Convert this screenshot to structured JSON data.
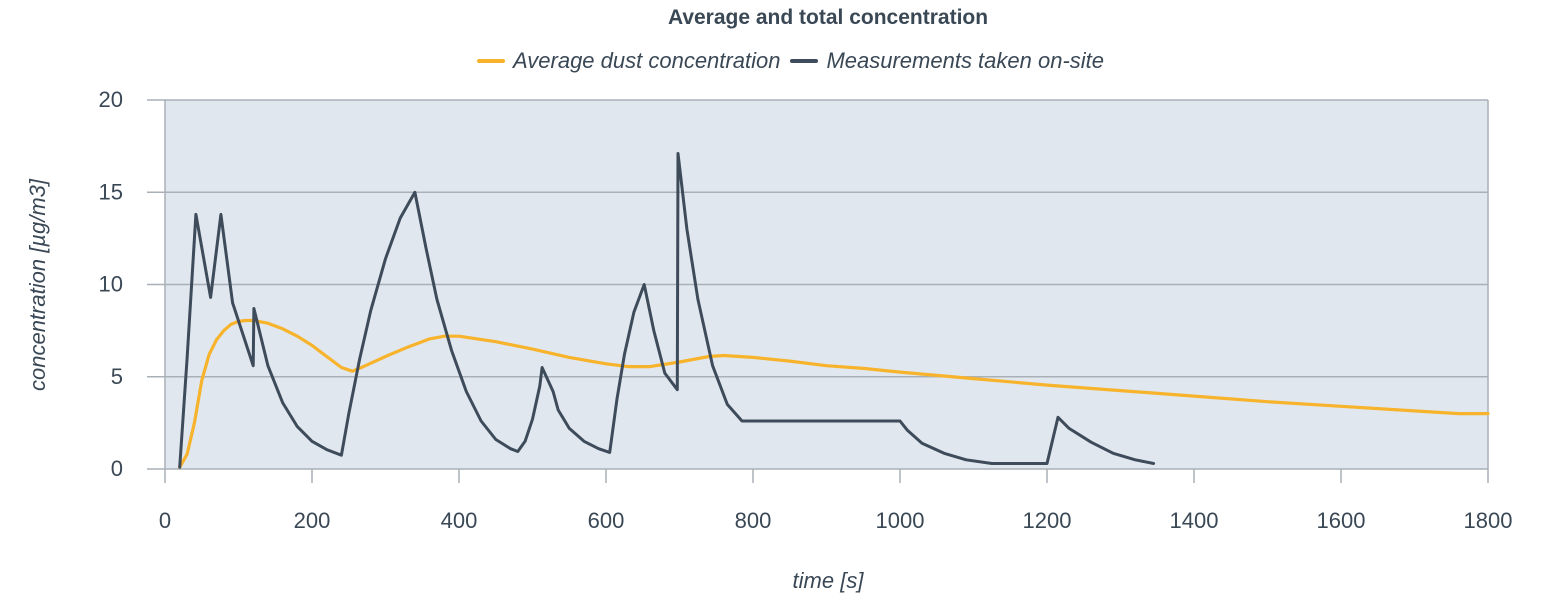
{
  "chart_data": {
    "type": "line",
    "title": "Average and total concentration",
    "xlabel": "time [s]",
    "ylabel": "concentration [µg/m3]",
    "xlim": [
      0,
      1800
    ],
    "ylim": [
      0,
      20
    ],
    "xticks": [
      0,
      200,
      400,
      600,
      800,
      1000,
      1200,
      1400,
      1600,
      1800
    ],
    "yticks": [
      0,
      5,
      10,
      15,
      20
    ],
    "grid": "horizontal",
    "legend_position": "top",
    "plot_background": "#e1e7ee",
    "series": [
      {
        "name": "Average dust concentration",
        "color": "#f7b32b",
        "points": [
          [
            20,
            0.1
          ],
          [
            30,
            0.8
          ],
          [
            40,
            2.5
          ],
          [
            50,
            4.8
          ],
          [
            60,
            6.2
          ],
          [
            70,
            7.0
          ],
          [
            80,
            7.5
          ],
          [
            90,
            7.85
          ],
          [
            100,
            8.0
          ],
          [
            110,
            8.05
          ],
          [
            120,
            8.05
          ],
          [
            140,
            7.9
          ],
          [
            160,
            7.6
          ],
          [
            180,
            7.2
          ],
          [
            200,
            6.7
          ],
          [
            220,
            6.1
          ],
          [
            240,
            5.5
          ],
          [
            255,
            5.3
          ],
          [
            270,
            5.55
          ],
          [
            300,
            6.1
          ],
          [
            330,
            6.6
          ],
          [
            360,
            7.05
          ],
          [
            380,
            7.2
          ],
          [
            400,
            7.2
          ],
          [
            450,
            6.9
          ],
          [
            500,
            6.5
          ],
          [
            550,
            6.05
          ],
          [
            600,
            5.7
          ],
          [
            630,
            5.55
          ],
          [
            660,
            5.55
          ],
          [
            700,
            5.8
          ],
          [
            740,
            6.1
          ],
          [
            760,
            6.15
          ],
          [
            800,
            6.05
          ],
          [
            850,
            5.85
          ],
          [
            900,
            5.6
          ],
          [
            950,
            5.45
          ],
          [
            1000,
            5.25
          ],
          [
            1100,
            4.9
          ],
          [
            1200,
            4.55
          ],
          [
            1300,
            4.25
          ],
          [
            1400,
            3.95
          ],
          [
            1500,
            3.65
          ],
          [
            1600,
            3.4
          ],
          [
            1700,
            3.15
          ],
          [
            1760,
            3.0
          ],
          [
            1800,
            3.0
          ]
        ]
      },
      {
        "name": "Measurements taken on-site",
        "color": "#3d4b5a",
        "points": [
          [
            20,
            0.1
          ],
          [
            30,
            6.0
          ],
          [
            42,
            13.8
          ],
          [
            62,
            9.3
          ],
          [
            76,
            13.8
          ],
          [
            92,
            9.0
          ],
          [
            120,
            5.6
          ],
          [
            121,
            8.7
          ],
          [
            140,
            5.6
          ],
          [
            160,
            3.6
          ],
          [
            180,
            2.3
          ],
          [
            200,
            1.5
          ],
          [
            220,
            1.05
          ],
          [
            240,
            0.75
          ],
          [
            250,
            3.0
          ],
          [
            265,
            6.0
          ],
          [
            280,
            8.6
          ],
          [
            300,
            11.4
          ],
          [
            320,
            13.6
          ],
          [
            340,
            15.0
          ],
          [
            355,
            12.0
          ],
          [
            370,
            9.2
          ],
          [
            390,
            6.4
          ],
          [
            410,
            4.2
          ],
          [
            430,
            2.6
          ],
          [
            450,
            1.6
          ],
          [
            470,
            1.1
          ],
          [
            480,
            0.95
          ],
          [
            490,
            1.5
          ],
          [
            500,
            2.7
          ],
          [
            510,
            4.5
          ],
          [
            513,
            5.5
          ],
          [
            528,
            4.2
          ],
          [
            535,
            3.2
          ],
          [
            550,
            2.2
          ],
          [
            570,
            1.5
          ],
          [
            590,
            1.1
          ],
          [
            605,
            0.9
          ],
          [
            615,
            3.8
          ],
          [
            625,
            6.2
          ],
          [
            638,
            8.5
          ],
          [
            652,
            10.0
          ],
          [
            665,
            7.5
          ],
          [
            680,
            5.2
          ],
          [
            697,
            4.3
          ],
          [
            698,
            17.1
          ],
          [
            710,
            13.0
          ],
          [
            725,
            9.2
          ],
          [
            745,
            5.6
          ],
          [
            765,
            3.5
          ],
          [
            785,
            2.6
          ],
          [
            795,
            2.6
          ],
          [
            1000,
            2.6
          ],
          [
            1010,
            2.1
          ],
          [
            1030,
            1.4
          ],
          [
            1060,
            0.85
          ],
          [
            1090,
            0.5
          ],
          [
            1125,
            0.3
          ],
          [
            1200,
            0.3
          ],
          [
            1215,
            2.8
          ],
          [
            1230,
            2.2
          ],
          [
            1260,
            1.45
          ],
          [
            1290,
            0.85
          ],
          [
            1320,
            0.5
          ],
          [
            1345,
            0.3
          ]
        ]
      }
    ]
  }
}
